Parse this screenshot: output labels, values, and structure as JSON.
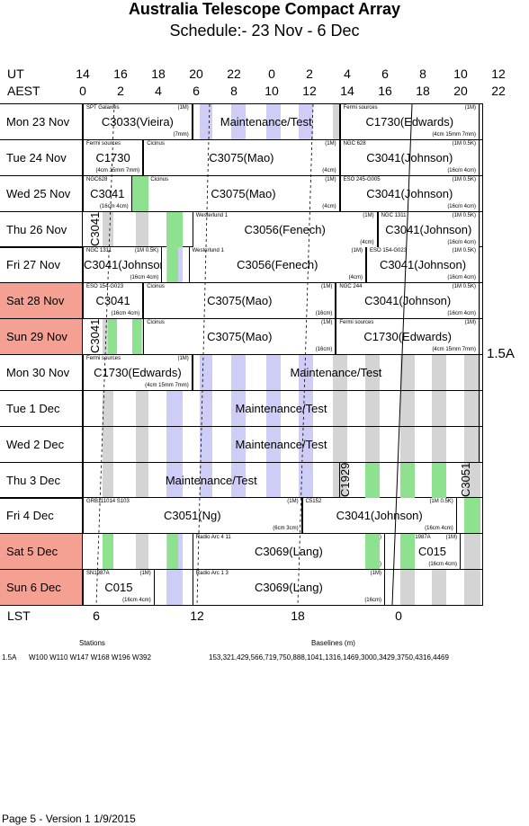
{
  "header": {
    "title": "Australia Telescope Compact Array",
    "subtitle": "Schedule:- 23 Nov - 6  Dec"
  },
  "axes": {
    "ut_label": "UT",
    "aest_label": "AEST",
    "lst_label": "LST",
    "ut_ticks": [
      "14",
      "16",
      "18",
      "20",
      "22",
      "0",
      "2",
      "4",
      "6",
      "8",
      "10",
      "12",
      "14"
    ],
    "aest_ticks": [
      "0",
      "2",
      "4",
      "6",
      "8",
      "10",
      "12",
      "14",
      "16",
      "18",
      "20",
      "22",
      "24"
    ],
    "lst_ticks": [
      "6",
      "12",
      "18",
      "0"
    ]
  },
  "days": [
    {
      "label": "Mon  23 Nov",
      "weekend": false
    },
    {
      "label": "Tue  24 Nov",
      "weekend": false
    },
    {
      "label": "Wed  25 Nov",
      "weekend": false
    },
    {
      "label": "Thu  26 Nov",
      "weekend": false
    },
    {
      "label": "Fri   27 Nov",
      "weekend": false
    },
    {
      "label": "Sat  28 Nov",
      "weekend": true
    },
    {
      "label": "Sun  29 Nov",
      "weekend": true
    },
    {
      "label": "Mon  30 Nov",
      "weekend": false
    },
    {
      "label": "Tue   1  Dec",
      "weekend": false
    },
    {
      "label": "Wed  2  Dec",
      "weekend": false
    },
    {
      "label": "Thu  3  Dec",
      "weekend": false
    },
    {
      "label": "Fri    4  Dec",
      "weekend": false
    },
    {
      "label": "Sat   5  Dec",
      "weekend": true
    },
    {
      "label": "Sun   6  Dec",
      "weekend": true
    }
  ],
  "config_label": "1.5A",
  "blocks": [
    {
      "row": 0,
      "start": 0,
      "end": 2.9,
      "name": "C3033(Vieira)",
      "src": "SPT Galaxies",
      "mode": "(1M)",
      "note": "(7mm)"
    },
    {
      "row": 0,
      "start": 2.9,
      "end": 6.8,
      "name": "Maintenance/Test",
      "src": "",
      "mode": "",
      "note": "",
      "transparent": true
    },
    {
      "row": 0,
      "start": 6.8,
      "end": 10.5,
      "name": "C1730(Edwards)",
      "src": "Fermi sources",
      "mode": "(1M)",
      "note": "(4cm 15mm 7mm)"
    },
    {
      "row": 1,
      "start": 0,
      "end": 1.6,
      "name": "C1730",
      "src": "Fermi sources",
      "mode": "",
      "note": "(4cm 15mm 7mm)"
    },
    {
      "row": 1,
      "start": 1.6,
      "end": 6.8,
      "name": "C3075(Mao)",
      "src": "Cicinus",
      "mode": "(1M)",
      "note": "(4cm)"
    },
    {
      "row": 1,
      "start": 6.8,
      "end": 10.5,
      "name": "C3041(Johnson)",
      "src": "NGC 628",
      "mode": "(1M 0.5K)",
      "note": "(16cm 4cm)"
    },
    {
      "row": 2,
      "start": 0,
      "end": 1.3,
      "name": "C3041",
      "src": "NGC628",
      "mode": "",
      "note": "(16cm 4cm)"
    },
    {
      "row": 2,
      "start": 1.7,
      "end": 6.8,
      "name": "C3075(Mao)",
      "src": "Cicinus",
      "mode": "(1M)",
      "note": "(4cm)"
    },
    {
      "row": 2,
      "start": 6.8,
      "end": 10.5,
      "name": "C3041(Johnson)",
      "src": "ESO 245-G005",
      "mode": "(1M 0.5K)",
      "note": "(16cm 4cm)"
    },
    {
      "row": 3,
      "start": 2.9,
      "end": 7.8,
      "name": "C3056(Fenech)",
      "src": "Westerlund 1",
      "mode": "(1M)",
      "note": "(4cm)"
    },
    {
      "row": 3,
      "start": 7.8,
      "end": 10.5,
      "name": "C3041(Johnson)",
      "src": "NGC 1311",
      "mode": "(1M 0.5K)",
      "note": "(16cm 4cm)"
    },
    {
      "row": 4,
      "start": 0,
      "end": 2.1,
      "name": "C3041(Johnson)",
      "src": "NGC 1311",
      "mode": "(1M 0.5K)",
      "note": "(16cm 4cm)"
    },
    {
      "row": 4,
      "start": 2.8,
      "end": 7.5,
      "name": "C3056(Fenech)",
      "src": "Westerlund 1",
      "mode": "(1M)",
      "note": "(4cm)"
    },
    {
      "row": 4,
      "start": 7.5,
      "end": 10.5,
      "name": "C3041(Johnson)",
      "src": "ESO 154-G023",
      "mode": "(1M 0.5K)",
      "note": "(16cm 4cm)"
    },
    {
      "row": 5,
      "start": 0,
      "end": 1.6,
      "name": "C3041",
      "src": "ESO 154-G023",
      "mode": "",
      "note": "(16cm 4cm)"
    },
    {
      "row": 5,
      "start": 1.6,
      "end": 6.7,
      "name": "C3075(Mao)",
      "src": "Cicinus",
      "mode": "(1M)",
      "note": "(16cm)"
    },
    {
      "row": 5,
      "start": 6.7,
      "end": 10.5,
      "name": "C3041(Johnson)",
      "src": "NGC 244",
      "mode": "(1M 0.5K)",
      "note": "(16cm 4cm)"
    },
    {
      "row": 6,
      "start": 1.6,
      "end": 6.7,
      "name": "C3075(Mao)",
      "src": "Cicinus",
      "mode": "(1M)",
      "note": "(16cm)"
    },
    {
      "row": 6,
      "start": 6.7,
      "end": 10.5,
      "name": "C1730(Edwards)",
      "src": "Fermi sources",
      "mode": "(1M)",
      "note": "(4cm 15mm 7mm)"
    },
    {
      "row": 7,
      "start": 0,
      "end": 2.9,
      "name": "C1730(Edwards)",
      "src": "Fermi sources",
      "mode": "(1M)",
      "note": "(4cm 15mm 7mm)"
    },
    {
      "row": 7,
      "start": 2.9,
      "end": 10.5,
      "name": "Maintenance/Test",
      "src": "",
      "mode": "",
      "note": "",
      "transparent": true
    },
    {
      "row": 8,
      "start": 0,
      "end": 10.5,
      "name": "Maintenance/Test",
      "src": "",
      "mode": "",
      "note": "",
      "transparent": true
    },
    {
      "row": 9,
      "start": 0,
      "end": 10.5,
      "name": "Maintenance/Test",
      "src": "",
      "mode": "",
      "note": "",
      "transparent": true
    },
    {
      "row": 10,
      "start": 0,
      "end": 6.8,
      "name": "Maintenance/Test",
      "src": "",
      "mode": "",
      "note": "",
      "transparent": true
    },
    {
      "row": 11,
      "start": 0,
      "end": 5.8,
      "name": "C3051(Ng)",
      "src": "GRB111014 S103",
      "mode": "(1M)",
      "note": "(6cm 3cm)"
    },
    {
      "row": 11,
      "start": 5.8,
      "end": 9.9,
      "name": "C3041(Johnson)",
      "src": "C5152",
      "mode": "(1M 0.5K)",
      "note": "(16cm 4cm)"
    },
    {
      "row": 12,
      "start": 2.9,
      "end": 8.0,
      "name": "C3069(Lang)",
      "src": "Radio Arc 4 11",
      "mode": "(1M)",
      "note": "(4cm)"
    },
    {
      "row": 12,
      "start": 8.5,
      "end": 10.0,
      "name": "C015",
      "src": "SN1987A",
      "mode": "(1M)",
      "note": "(16cm 4cm)"
    },
    {
      "row": 13,
      "start": 0,
      "end": 1.9,
      "name": "C015",
      "src": "SN1987A",
      "mode": "(1M)",
      "note": "(16cm 4cm)"
    },
    {
      "row": 13,
      "start": 2.9,
      "end": 8.0,
      "name": "C3069(Lang)",
      "src": "Radio Arc 1 3",
      "mode": "(1M)",
      "note": "(16cm)"
    }
  ],
  "vertical_labels": [
    {
      "row": 3,
      "start": 0.2,
      "text": "C3041"
    },
    {
      "row": 6,
      "start": 0.2,
      "text": "C3041"
    },
    {
      "row": 10,
      "start": 6.8,
      "text": "C1929"
    },
    {
      "row": 10,
      "start": 10.0,
      "text": "C3051"
    }
  ],
  "footer": {
    "stations_head": "Stations",
    "baselines_head": "Baselines (m)",
    "config": "1.5A",
    "stations": "W100 W110 W147 W168 W196 W392",
    "baselines": "153,321,429,566,719,750,888,1041,1316,1469,3000,3429,3750,4316,4469",
    "page": "Page 5 - Version 1  1/9/2015"
  }
}
